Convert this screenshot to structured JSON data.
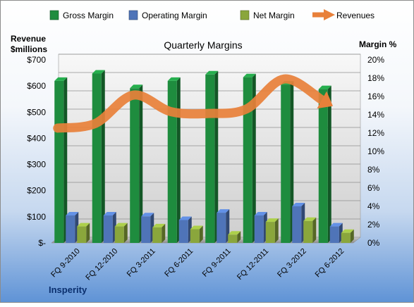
{
  "chart_data": {
    "type": "bar",
    "title": "Quarterly Margins",
    "left_axis_title": [
      "Revenue",
      "$millions"
    ],
    "right_axis_title": "Margin %",
    "footer_label": "Insperity",
    "categories": [
      "FQ 9-2010",
      "FQ 12-2010",
      "FQ 3-2011",
      "FQ 6-2011",
      "FQ 9-2011",
      "FQ 12-2011",
      "FQ 3-2012",
      "FQ 6-2012"
    ],
    "left_ticks": [
      "$-",
      "$100",
      "$200",
      "$300",
      "$400",
      "$500",
      "$600",
      "$700"
    ],
    "right_ticks": [
      "0%",
      "2%",
      "4%",
      "6%",
      "8%",
      "10%",
      "12%",
      "14%",
      "16%",
      "18%",
      "20%"
    ],
    "ylim_left": [
      0,
      700
    ],
    "ylim_right": [
      0,
      20
    ],
    "grid": true,
    "legend_position": "top",
    "series": [
      {
        "name": "Gross Margin",
        "kind": "bar",
        "axis": "right",
        "color": "#1e8c3e",
        "values": [
          17.7,
          18.5,
          16.9,
          17.7,
          18.4,
          18.1,
          17.3,
          16.8
        ]
      },
      {
        "name": "Operating Margin",
        "kind": "bar",
        "axis": "right",
        "color": "#4f74b8",
        "values": [
          3.0,
          3.0,
          2.9,
          2.5,
          3.3,
          3.0,
          4.0,
          1.8
        ]
      },
      {
        "name": "Net Margin",
        "kind": "bar",
        "axis": "right",
        "color": "#8aa63c",
        "values": [
          1.8,
          1.8,
          1.7,
          1.5,
          0.9,
          2.3,
          2.4,
          1.1
        ]
      },
      {
        "name": "Revenues",
        "kind": "line",
        "axis": "left",
        "color": "#e8803a",
        "values": [
          412,
          430,
          538,
          475,
          468,
          485,
          600,
          520
        ]
      }
    ]
  }
}
